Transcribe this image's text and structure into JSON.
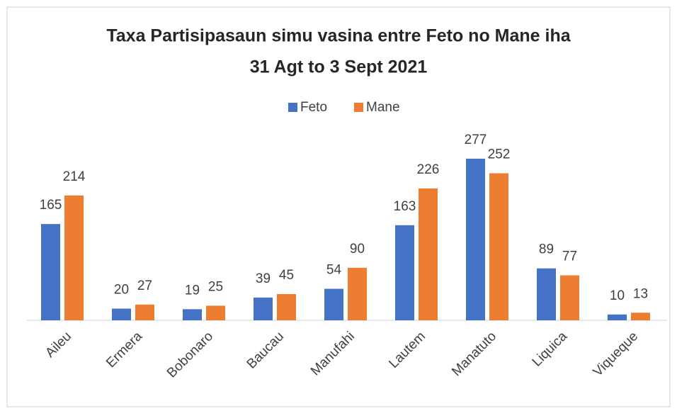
{
  "chart_data": {
    "type": "bar",
    "title": [
      "Taxa Partisipasaun simu vasina entre Feto no Mane iha",
      "31 Agt to 3 Sept 2021"
    ],
    "categories": [
      "Aileu",
      "Ermera",
      "Bobonaro",
      "Baucau",
      "Manufahi",
      "Lautem",
      "Manatuto",
      "Liquica",
      "Viqueque"
    ],
    "series": [
      {
        "name": "Feto",
        "color": "#4472c4",
        "values": [
          165,
          20,
          19,
          39,
          54,
          163,
          277,
          89,
          10
        ]
      },
      {
        "name": "Mane",
        "color": "#ed7d31",
        "values": [
          214,
          27,
          25,
          45,
          90,
          226,
          252,
          77,
          13
        ]
      }
    ],
    "ylim": [
      0,
      300
    ],
    "legend": "top"
  }
}
